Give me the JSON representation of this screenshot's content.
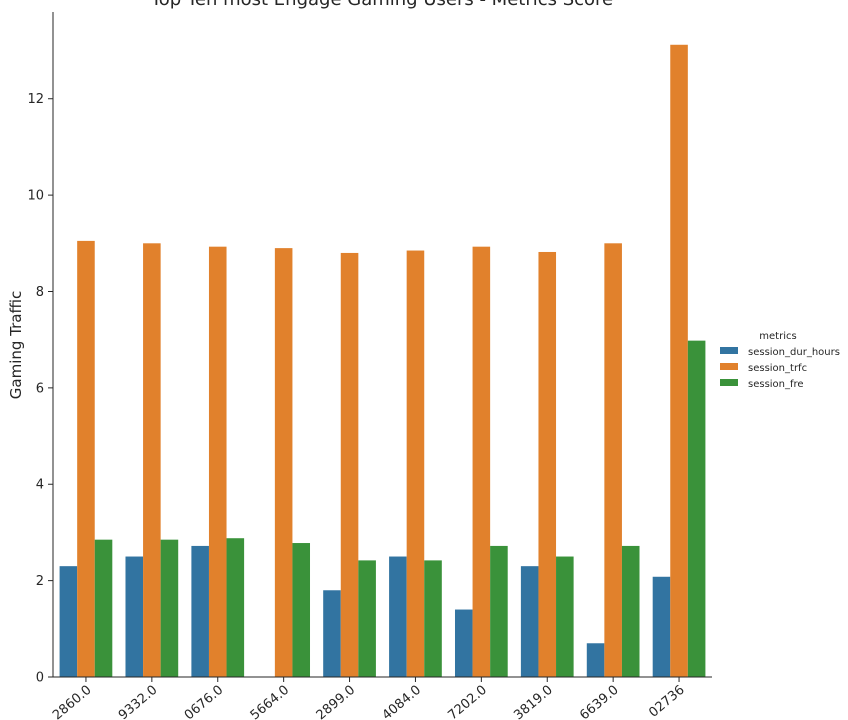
{
  "chart_data": {
    "type": "bar",
    "title": "Top Ten most Engage Gaming Users - Metrics Score",
    "xlabel": "",
    "ylabel": "Gaming Traffic",
    "ylim": [
      0,
      13.8
    ],
    "yticks": [
      "0",
      "2",
      "4",
      "6",
      "8",
      "10",
      "12"
    ],
    "ytick_values": [
      0,
      2,
      4,
      6,
      8,
      10,
      12
    ],
    "categories": [
      "2860.0",
      "9332.0",
      "0676.0",
      "5664.0",
      "2899.0",
      "4084.0",
      "7202.0",
      "3819.0",
      "6639.0",
      "02736"
    ],
    "series": [
      {
        "name": "session_dur_hours",
        "color": "#3274a1",
        "values": [
          2.3,
          2.5,
          2.72,
          0,
          1.8,
          2.5,
          1.4,
          2.3,
          0.7,
          2.08
        ]
      },
      {
        "name": "session_trfc",
        "color": "#e1812c",
        "values": [
          9.05,
          9.0,
          8.93,
          8.9,
          8.8,
          8.85,
          8.93,
          8.82,
          9.0,
          13.12
        ]
      },
      {
        "name": "session_fre",
        "color": "#3a923a",
        "values": [
          2.85,
          2.85,
          2.88,
          2.78,
          2.42,
          2.42,
          2.72,
          2.5,
          2.72,
          6.98
        ]
      }
    ],
    "grid": false,
    "legend": {
      "title": "metrics",
      "placement": "right"
    }
  }
}
